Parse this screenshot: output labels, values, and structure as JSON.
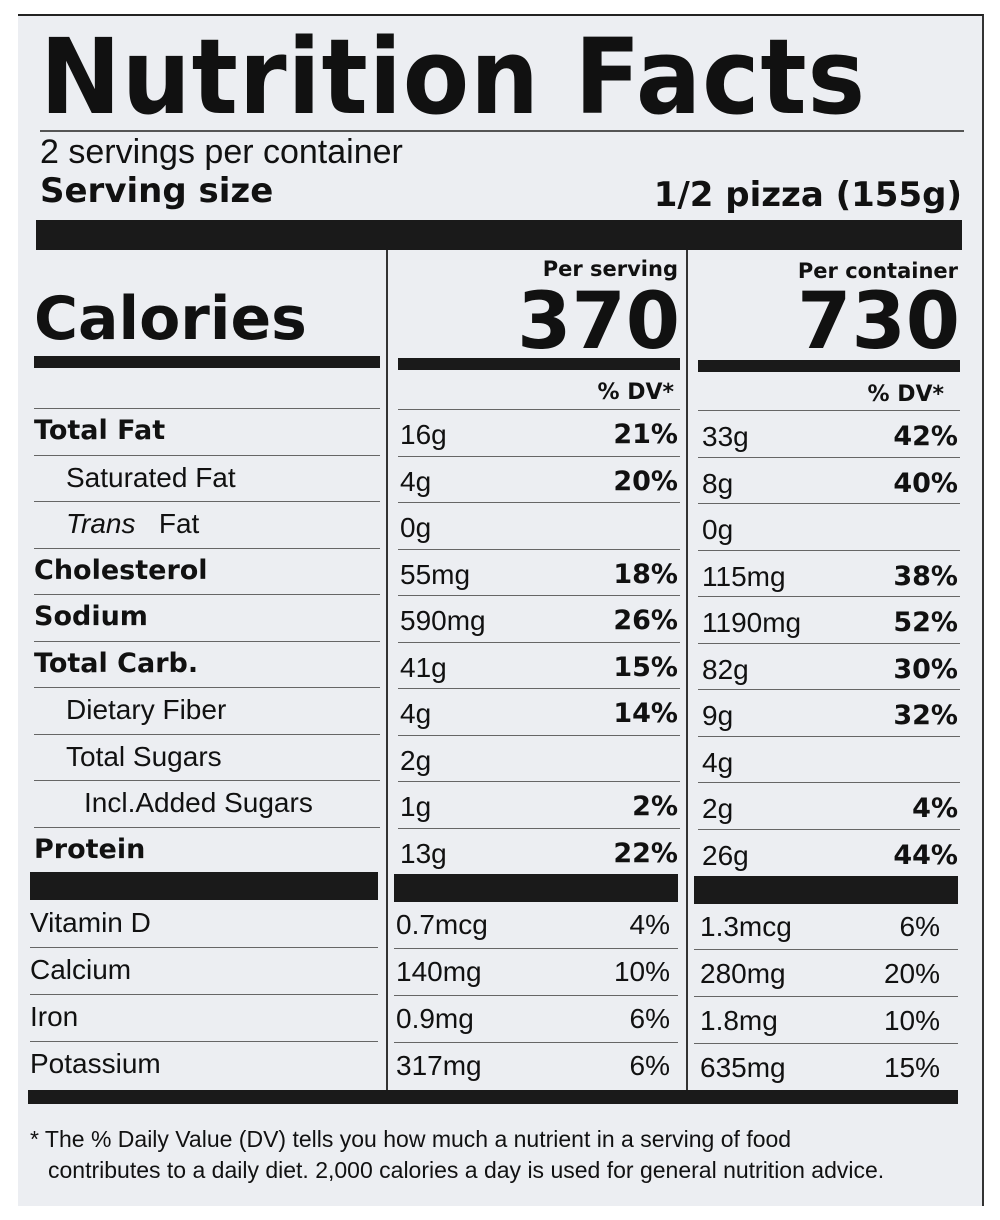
{
  "title": "Nutrition Facts",
  "servings_per_container": "2 servings per container",
  "serving_size_label": "Serving size",
  "serving_size_value": "1/2 pizza (155g)",
  "calories_label": "Calories",
  "per_serving_label": "Per serving",
  "per_container_label": "Per container",
  "calories_per_serving": "370",
  "calories_per_container": "730",
  "dv_header": "% DV*",
  "nutrients": [
    {
      "name": "Total Fat",
      "bold": true,
      "indent": 0,
      "serving_amt": "16g",
      "serving_dv": "21%",
      "container_amt": "33g",
      "container_dv": "42%"
    },
    {
      "name": "Saturated Fat",
      "bold": false,
      "indent": 1,
      "serving_amt": "4g",
      "serving_dv": "20%",
      "container_amt": "8g",
      "container_dv": "40%"
    },
    {
      "name_italic": "Trans",
      "name_rest": "Fat",
      "bold": false,
      "indent": 1,
      "serving_amt": "0g",
      "serving_dv": "",
      "container_amt": "0g",
      "container_dv": ""
    },
    {
      "name": "Cholesterol",
      "bold": true,
      "indent": 0,
      "serving_amt": "55mg",
      "serving_dv": "18%",
      "container_amt": "115mg",
      "container_dv": "38%"
    },
    {
      "name": "Sodium",
      "bold": true,
      "indent": 0,
      "serving_amt": "590mg",
      "serving_dv": "26%",
      "container_amt": "1190mg",
      "container_dv": "52%"
    },
    {
      "name": "Total Carb.",
      "bold": true,
      "indent": 0,
      "serving_amt": "41g",
      "serving_dv": "15%",
      "container_amt": "82g",
      "container_dv": "30%"
    },
    {
      "name": "Dietary Fiber",
      "bold": false,
      "indent": 1,
      "serving_amt": "4g",
      "serving_dv": "14%",
      "container_amt": "9g",
      "container_dv": "32%"
    },
    {
      "name": "Total Sugars",
      "bold": false,
      "indent": 1,
      "serving_amt": "2g",
      "serving_dv": "",
      "container_amt": "4g",
      "container_dv": ""
    },
    {
      "name": "Incl.Added Sugars",
      "bold": false,
      "indent": 2,
      "serving_amt": "1g",
      "serving_dv": "2%",
      "container_amt": "2g",
      "container_dv": "4%"
    },
    {
      "name": "Protein",
      "bold": true,
      "indent": 0,
      "serving_amt": "13g",
      "serving_dv": "22%",
      "container_amt": "26g",
      "container_dv": "44%"
    }
  ],
  "vitamins": [
    {
      "name": "Vitamin D",
      "serving_amt": "0.7mcg",
      "serving_dv": "4%",
      "container_amt": "1.3mcg",
      "container_dv": "6%"
    },
    {
      "name": "Calcium",
      "serving_amt": "140mg",
      "serving_dv": "10%",
      "container_amt": "280mg",
      "container_dv": "20%"
    },
    {
      "name": "Iron",
      "serving_amt": "0.9mg",
      "serving_dv": "6%",
      "container_amt": "1.8mg",
      "container_dv": "10%"
    },
    {
      "name": "Potassium",
      "serving_amt": "317mg",
      "serving_dv": "6%",
      "container_amt": "635mg",
      "container_dv": "15%"
    }
  ],
  "footnote_line1": "* The % Daily Value (DV) tells you how much a nutrient in a serving of food",
  "footnote_line2": "contributes to a daily diet. 2,000 calories a day is used for general nutrition advice."
}
